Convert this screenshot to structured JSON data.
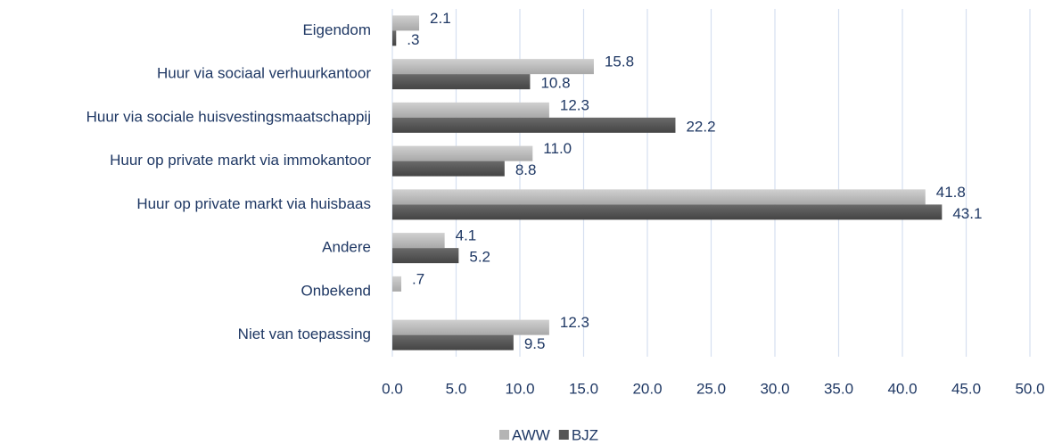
{
  "chart_data": {
    "type": "bar",
    "orientation": "horizontal",
    "categories": [
      "Eigendom",
      "Huur via sociaal verhuurkantoor",
      "Huur via sociale huisvestingsmaatschappij",
      "Huur op private markt via immokantoor",
      "Huur op private markt via huisbaas",
      "Andere",
      "Onbekend",
      "Niet van toepassing"
    ],
    "series": [
      {
        "name": "AWW",
        "color": "#b4b4b4",
        "values": [
          2.1,
          15.8,
          12.3,
          11.0,
          41.8,
          4.1,
          0.7,
          12.3
        ],
        "value_labels": [
          "2.1",
          "15.8",
          "12.3",
          "11.0",
          "41.8",
          "4.1",
          ".7",
          "12.3"
        ]
      },
      {
        "name": "BJZ",
        "color": "#555555",
        "values": [
          0.3,
          10.8,
          22.2,
          8.8,
          43.1,
          5.2,
          null,
          9.5
        ],
        "value_labels": [
          ".3",
          "10.8",
          "22.2",
          "8.8",
          "43.1",
          "5.2",
          null,
          "9.5"
        ]
      }
    ],
    "xlim": [
      0,
      50
    ],
    "xticks": [
      {
        "value": 0,
        "label": "0.0"
      },
      {
        "value": 5,
        "label": "5.0"
      },
      {
        "value": 10,
        "label": "10.0"
      },
      {
        "value": 15,
        "label": "15.0"
      },
      {
        "value": 20,
        "label": "20.0"
      },
      {
        "value": 25,
        "label": "25.0"
      },
      {
        "value": 30,
        "label": "30.0"
      },
      {
        "value": 35,
        "label": "35.0"
      },
      {
        "value": 40,
        "label": "40.0"
      },
      {
        "value": 45,
        "label": "45.0"
      },
      {
        "value": 50,
        "label": "50.0"
      }
    ],
    "grid": true,
    "legend": "bottom"
  }
}
